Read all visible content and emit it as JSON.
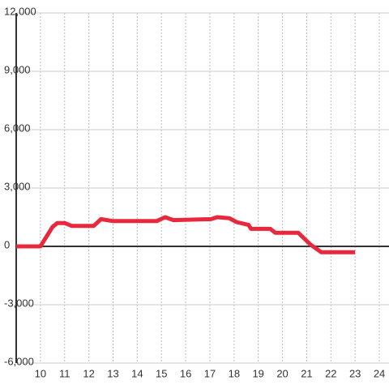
{
  "chart_data": {
    "type": "line",
    "x": [
      9.0,
      10.0,
      10.2,
      10.5,
      10.7,
      11.0,
      11.3,
      12.2,
      12.5,
      13.0,
      14.8,
      15.15,
      15.5,
      17.05,
      17.3,
      17.8,
      18.1,
      18.6,
      18.7,
      19.5,
      19.7,
      20.65,
      21.15,
      21.6,
      23.0
    ],
    "series": [
      {
        "color": "#e8283c",
        "values": [
          0,
          0,
          400,
          1000,
          1200,
          1200,
          1050,
          1050,
          1400,
          1300,
          1300,
          1500,
          1350,
          1400,
          1500,
          1450,
          1250,
          1100,
          900,
          900,
          700,
          700,
          100,
          -300,
          -300
        ]
      }
    ],
    "xlim": [
      9,
      24.4
    ],
    "xticks": [
      10,
      11,
      12,
      13,
      14,
      15,
      16,
      17,
      18,
      19,
      20,
      21,
      22,
      23,
      24
    ],
    "ylim": [
      -6000,
      12000
    ],
    "yticks": [
      {
        "value": -6000,
        "label": "-6,000"
      },
      {
        "value": -3000,
        "label": "-3,000"
      },
      0,
      {
        "value": 3000,
        "label": "3,000"
      },
      {
        "value": 6000,
        "label": "6,000"
      },
      {
        "value": 9000,
        "label": "9,000"
      },
      {
        "value": 12000,
        "label": "12,000"
      }
    ],
    "grid": true
  }
}
